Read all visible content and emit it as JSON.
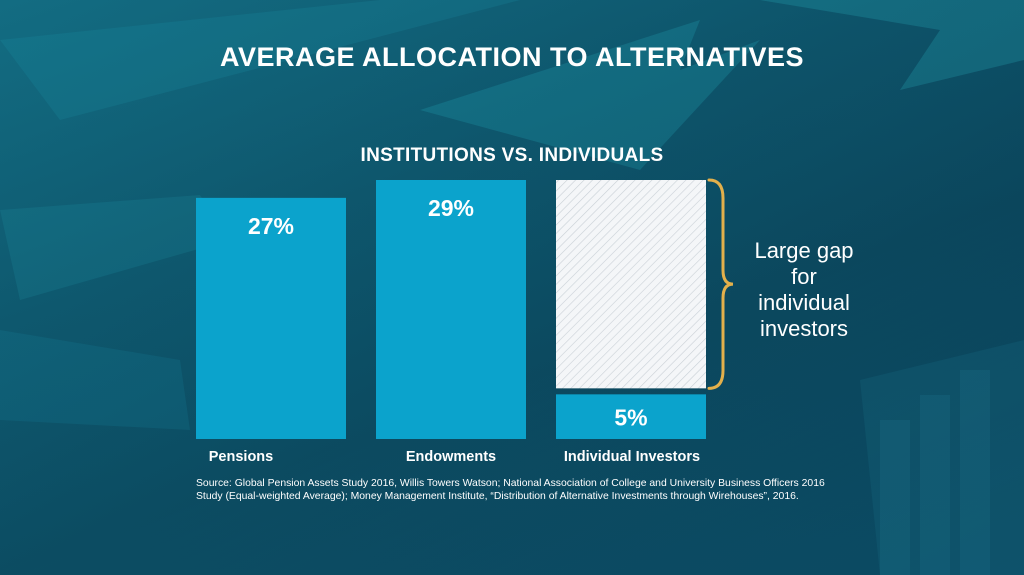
{
  "title": "AVERAGE ALLOCATION TO ALTERNATIVES",
  "chart_data": {
    "type": "bar",
    "subtitle": "INSTITUTIONS VS. INDIVIDUALS",
    "categories": [
      "Pensions",
      "Endowments",
      "Individual Investors"
    ],
    "values": [
      27,
      29,
      5
    ],
    "data_labels": [
      "27%",
      "29%",
      "5%"
    ],
    "ylim": [
      0,
      29
    ],
    "grid": false,
    "bar_color": "#0ba3cc",
    "annotation": {
      "text": "Large gap for individual investors",
      "gap_from": 5,
      "gap_to": 29,
      "bracket_color": "#e3b04b"
    }
  },
  "source_note": {
    "label": "Source:",
    "text": "Global Pension Assets Study 2016, Willis Towers Watson; National Association of College and University Business Officers 2016 Study (Equal-weighted Average); Money Management Institute, “Distribution of Alternative Investments through Wirehouses”, 2016."
  }
}
